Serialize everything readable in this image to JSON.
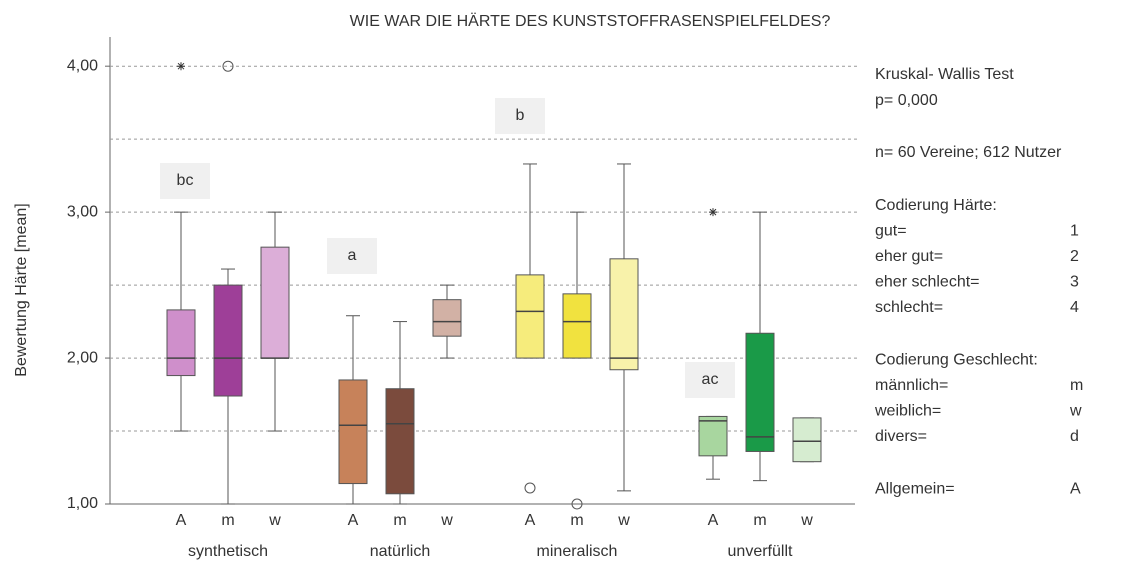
{
  "chart_data": {
    "type": "boxplot",
    "title": "WIE WAR DIE HÄRTE DES KUNSTSTOFFRASENSPIELFELDES?",
    "y_label": "Bewertung Härte [mean]",
    "ylim": [
      1,
      4.2
    ],
    "yticks": [
      {
        "value": 1,
        "label": "1,00"
      },
      {
        "value": 2,
        "label": "2,00"
      },
      {
        "value": 3,
        "label": "3,00"
      },
      {
        "value": 4,
        "label": "4,00"
      }
    ],
    "minor_yticks": [
      1.5,
      2.5,
      3.5
    ],
    "grid": true,
    "groups": [
      {
        "name": "synthetisch",
        "annotation": "bc",
        "boxes": [
          {
            "label": "A",
            "color": "#cf8fcb",
            "min": 1.5,
            "q1": 1.88,
            "median": 2.0,
            "q3": 2.33,
            "max": 3.0,
            "outliers": [],
            "extremes": [
              4.0
            ]
          },
          {
            "label": "m",
            "color": "#9e3f98",
            "min": 1.0,
            "q1": 1.74,
            "median": 2.0,
            "q3": 2.5,
            "max": 2.61,
            "outliers": [
              4.0
            ],
            "extremes": []
          },
          {
            "label": "w",
            "color": "#dcaed8",
            "min": 1.5,
            "q1": 2.0,
            "median": 2.0,
            "q3": 2.76,
            "max": 3.0,
            "outliers": [],
            "extremes": []
          }
        ]
      },
      {
        "name": "natürlich",
        "annotation": "a",
        "boxes": [
          {
            "label": "A",
            "color": "#c7825a",
            "min": 1.0,
            "q1": 1.14,
            "median": 1.54,
            "q3": 1.85,
            "max": 2.29,
            "outliers": [],
            "extremes": []
          },
          {
            "label": "m",
            "color": "#7b4b3d",
            "min": 1.0,
            "q1": 1.07,
            "median": 1.55,
            "q3": 1.79,
            "max": 2.25,
            "outliers": [],
            "extremes": []
          },
          {
            "label": "w",
            "color": "#d2b1a5",
            "min": 2.0,
            "q1": 2.15,
            "median": 2.25,
            "q3": 2.4,
            "max": 2.5,
            "outliers": [],
            "extremes": []
          }
        ]
      },
      {
        "name": "mineralisch",
        "annotation": "b",
        "boxes": [
          {
            "label": "A",
            "color": "#f6ec7c",
            "min": 2.0,
            "q1": 2.0,
            "median": 2.32,
            "q3": 2.57,
            "max": 3.33,
            "outliers": [
              1.11
            ],
            "extremes": []
          },
          {
            "label": "m",
            "color": "#f1e23f",
            "min": 2.0,
            "q1": 2.0,
            "median": 2.25,
            "q3": 2.44,
            "max": 3.0,
            "outliers": [
              1.0
            ],
            "extremes": []
          },
          {
            "label": "w",
            "color": "#f8f2aa",
            "min": 1.09,
            "q1": 1.92,
            "median": 2.0,
            "q3": 2.68,
            "max": 3.33,
            "outliers": [],
            "extremes": []
          }
        ]
      },
      {
        "name": "unverfüllt",
        "annotation": "ac",
        "boxes": [
          {
            "label": "A",
            "color": "#a8d69f",
            "min": 1.17,
            "q1": 1.33,
            "median": 1.57,
            "q3": 1.6,
            "max": 1.6,
            "outliers": [],
            "extremes": [
              3.0
            ]
          },
          {
            "label": "m",
            "color": "#1a9a48",
            "min": 1.16,
            "q1": 1.36,
            "median": 1.46,
            "q3": 2.17,
            "max": 3.0,
            "outliers": [],
            "extremes": []
          },
          {
            "label": "w",
            "color": "#d6ecd0",
            "min": 1.29,
            "q1": 1.29,
            "median": 1.43,
            "q3": 1.59,
            "max": 1.59,
            "outliers": [],
            "extremes": []
          }
        ]
      }
    ],
    "notes": [
      "Kruskal- Wallis Test",
      "p= 0,000",
      "n= 60 Vereine; 612 Nutzer"
    ],
    "codings": [
      {
        "title": "Codierung Härte:",
        "rows": [
          [
            "gut=",
            "1"
          ],
          [
            "eher gut=",
            "2"
          ],
          [
            "eher schlecht=",
            "3"
          ],
          [
            "schlecht=",
            "4"
          ]
        ]
      },
      {
        "title": "Codierung Geschlecht:",
        "rows": [
          [
            "männlich=",
            "m"
          ],
          [
            "weiblich=",
            "w"
          ],
          [
            "divers=",
            "d"
          ]
        ]
      },
      {
        "title": null,
        "rows": [
          [
            "Allgemein=",
            "A"
          ]
        ]
      }
    ]
  }
}
